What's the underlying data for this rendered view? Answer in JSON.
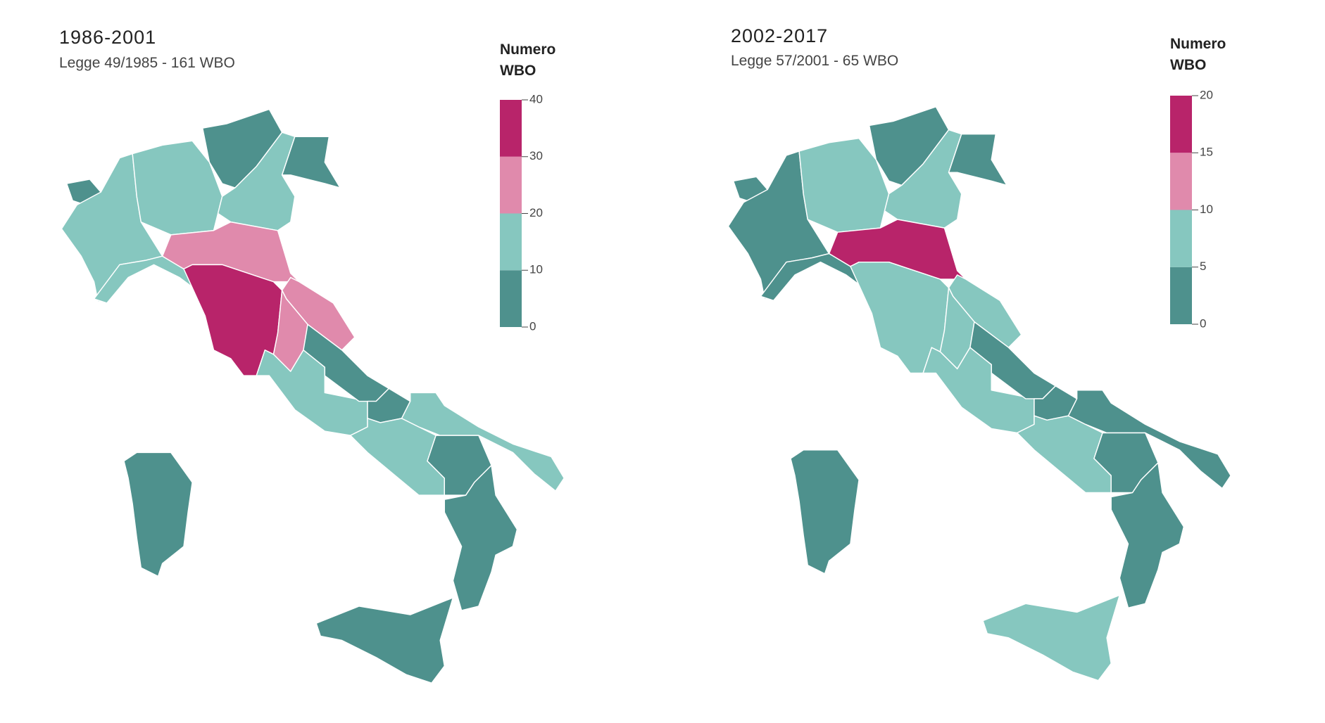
{
  "maps": [
    {
      "title": "1986-2001",
      "subtitle": "Legge 49/1985 - 161 WBO",
      "legend": {
        "title": "Numero WBO",
        "ticks": [
          0,
          10,
          20,
          30,
          40
        ],
        "colors": [
          "#4e918d",
          "#86c7bf",
          "#e08aac",
          "#b8246a"
        ]
      }
    },
    {
      "title": "2002-2017",
      "subtitle": "Legge 57/2001 - 65 WBO",
      "legend": {
        "title": "Numero WBO",
        "ticks": [
          0,
          5,
          10,
          15,
          20
        ],
        "colors": [
          "#4e918d",
          "#86c7bf",
          "#e08aac",
          "#b8246a"
        ]
      }
    }
  ]
}
